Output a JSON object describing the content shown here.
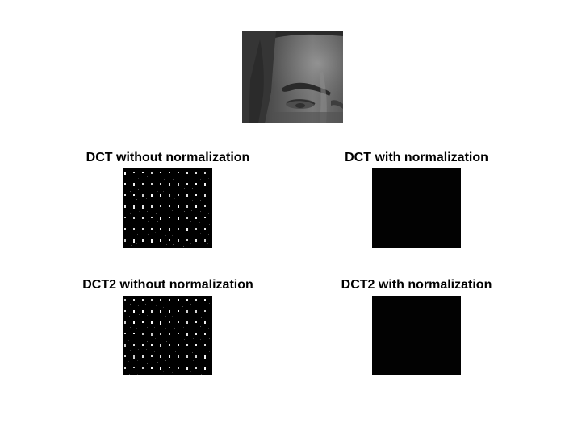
{
  "figure": {
    "background": "#ffffff",
    "panels": [
      {
        "id": "source-face",
        "title": ""
      },
      {
        "id": "dct-no-norm",
        "title": "DCT without normalization"
      },
      {
        "id": "dct-norm",
        "title": "DCT with normalization"
      },
      {
        "id": "dct2-no-norm",
        "title": "DCT2 without normalization"
      },
      {
        "id": "dct2-norm",
        "title": "DCT2 with normalization"
      }
    ]
  },
  "images": {
    "source_face": {
      "content": "grayscale face crop (forehead and eyes)",
      "tone": "gray"
    },
    "dct_no_norm": {
      "content": "black block with grid of bright DCT coefficient dots",
      "tone": "black"
    },
    "dct_norm": {
      "content": "near-black block",
      "tone": "black"
    },
    "dct2_no_norm": {
      "content": "black block with grid of bright DCT coefficient dots",
      "tone": "black"
    },
    "dct2_norm": {
      "content": "near-black block",
      "tone": "black"
    }
  }
}
